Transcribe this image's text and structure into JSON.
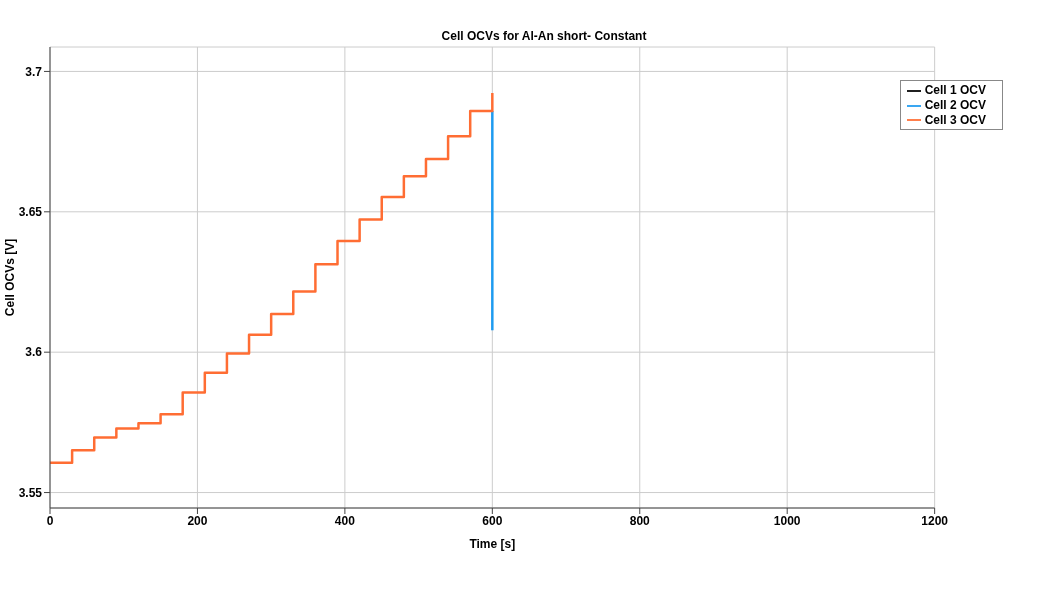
{
  "chart_data": {
    "type": "step",
    "title": "Cell OCVs for Al-An short- Constant",
    "xlabel": "Time [s]",
    "ylabel": "Cell OCVs [V]",
    "xlim": [
      0,
      1200
    ],
    "xticks": [
      0,
      200,
      400,
      600,
      800,
      1000,
      1200
    ],
    "ylim": [
      3.5445,
      3.7087
    ],
    "yticks": [
      3.55,
      3.6,
      3.65,
      3.7
    ],
    "grid": true,
    "legend": "top right",
    "series": [
      {
        "name": "Cell 1 OCV",
        "color": "#000000"
      },
      {
        "name": "Cell 2 OCV",
        "color": "#1e9bf0",
        "x": [
          600,
          600
        ],
        "values": [
          3.6859,
          3.6078
        ]
      },
      {
        "name": "Cell 3 OCV",
        "color": "#ff6d33",
        "x": [
          0,
          30,
          60,
          90,
          120,
          150,
          180,
          210,
          240,
          270,
          300,
          330,
          360,
          390,
          420,
          450,
          480,
          510,
          540,
          570,
          600
        ],
        "values": [
          3.5606,
          3.5651,
          3.5696,
          3.5728,
          3.5747,
          3.5779,
          3.5856,
          3.5927,
          3.5995,
          3.6062,
          3.6136,
          3.6216,
          3.6313,
          3.6396,
          3.6473,
          3.6553,
          3.6627,
          3.6688,
          3.6769,
          3.6859,
          3.6923
        ]
      }
    ]
  }
}
